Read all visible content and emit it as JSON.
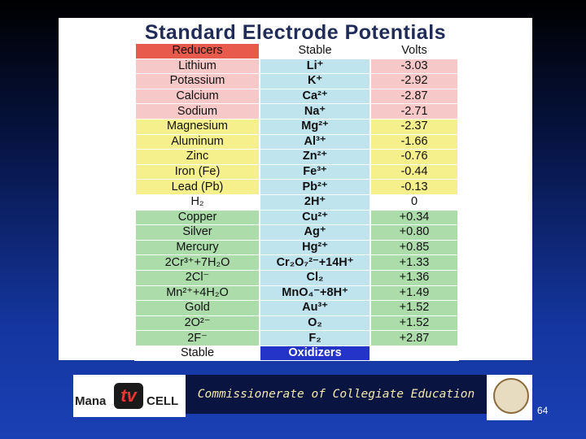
{
  "header": {
    "title": "Standard Electrode Potentials"
  },
  "table": {
    "header": [
      "Reducers",
      "Stable",
      "Volts"
    ],
    "rows": [
      [
        "Lithium",
        "Li⁺",
        "-3.03"
      ],
      [
        "Potassium",
        "K⁺",
        "-2.92"
      ],
      [
        "Calcium",
        "Ca²⁺",
        "-2.87"
      ],
      [
        "Sodium",
        "Na⁺",
        "-2.71"
      ],
      [
        "Magnesium",
        "Mg²⁺",
        "-2.37"
      ],
      [
        "Aluminum",
        "Al³⁺",
        "-1.66"
      ],
      [
        "Zinc",
        "Zn²⁺",
        "-0.76"
      ],
      [
        "Iron (Fe)",
        "Fe³⁺",
        "-0.44"
      ],
      [
        "Lead (Pb)",
        "Pb²⁺",
        "-0.13"
      ],
      [
        "H₂",
        "2H⁺",
        "0"
      ],
      [
        "Copper",
        "Cu²⁺",
        "+0.34"
      ],
      [
        "Silver",
        "Ag⁺",
        "+0.80"
      ],
      [
        "Mercury",
        "Hg²⁺",
        "+0.85"
      ],
      [
        "2Cr³⁺+7H₂O",
        "Cr₂O₇²⁻+14H⁺",
        "+1.33"
      ],
      [
        "2Cl⁻",
        "Cl₂",
        "+1.36"
      ],
      [
        "Mn²⁺+4H₂O",
        "MnO₄⁻+8H⁺",
        "+1.49"
      ],
      [
        "Gold",
        "Au³⁺",
        "+1.52"
      ],
      [
        "2O²⁻",
        "O₂",
        "+1.52"
      ],
      [
        "2F⁻",
        "F₂",
        "+2.87"
      ]
    ],
    "footer": [
      "Stable",
      "Oxidizers"
    ]
  },
  "footer": {
    "logo": {
      "left": "Mana",
      "middle": "tv",
      "right": "CELL"
    },
    "banner": "Commissionerate of Collegiate Education",
    "page": "64"
  }
}
